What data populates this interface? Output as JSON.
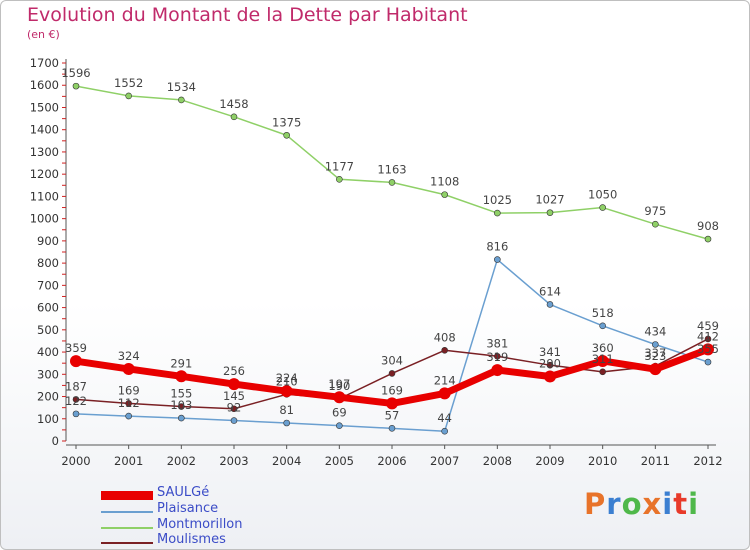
{
  "chart_data": {
    "type": "line",
    "title": "Evolution du Montant de la Dette par Habitant",
    "subtitle": "(en €)",
    "x": [
      "2000",
      "2001",
      "2002",
      "2003",
      "2004",
      "2005",
      "2006",
      "2007",
      "2008",
      "2009",
      "2010",
      "2011",
      "2012"
    ],
    "ylim": [
      0,
      1700
    ],
    "yticks": [
      0,
      100,
      200,
      300,
      400,
      500,
      600,
      700,
      800,
      900,
      1000,
      1100,
      1200,
      1300,
      1400,
      1500,
      1600,
      1700
    ],
    "grid": false,
    "legend_position": "bottom-left",
    "series": [
      {
        "name": "SAULGé",
        "color": "#e80000",
        "values": [
          359,
          324,
          291,
          256,
          224,
          197,
          169,
          214,
          319,
          290,
          360,
          323,
          412
        ],
        "labels": [
          "359",
          "324",
          "291",
          "256",
          "224",
          "197",
          "169",
          "214",
          "319",
          "290",
          "360",
          "323",
          "412"
        ]
      },
      {
        "name": "Plaisance",
        "color": "#6a9fd0",
        "values": [
          122,
          112,
          103,
          92,
          81,
          69,
          57,
          44,
          816,
          614,
          518,
          434,
          355
        ],
        "labels": [
          "122",
          "112",
          "103",
          "92",
          "81",
          "69",
          "57",
          "44",
          "816",
          "614",
          "518",
          "434",
          "355"
        ]
      },
      {
        "name": "Montmorillon",
        "color": "#8fd067",
        "values": [
          1596,
          1552,
          1534,
          1458,
          1375,
          1177,
          1163,
          1108,
          1025,
          1027,
          1050,
          975,
          908
        ],
        "labels": [
          "1596",
          "1552",
          "1534",
          "1458",
          "1375",
          "1177",
          "1163",
          "1108",
          "1025",
          "1027",
          "1050",
          "975",
          "908"
        ]
      },
      {
        "name": "Moulismes",
        "color": "#7a2024",
        "values": [
          187,
          169,
          155,
          145,
          210,
          190,
          304,
          408,
          381,
          341,
          311,
          337,
          459
        ],
        "labels": [
          "187",
          "169",
          "155",
          "145",
          "210",
          "190",
          "304",
          "408",
          "381",
          "341",
          "311",
          "337",
          "459"
        ]
      }
    ]
  },
  "logo": {
    "text": "Proxiti",
    "letters": [
      "P",
      "r",
      "o",
      "x",
      "i",
      "t",
      "i"
    ],
    "colors": [
      "#e8732a",
      "#3b7fd1",
      "#4fb84a",
      "#e8732a",
      "#3b7fd1",
      "#e83a2a",
      "#4fb84a"
    ]
  }
}
